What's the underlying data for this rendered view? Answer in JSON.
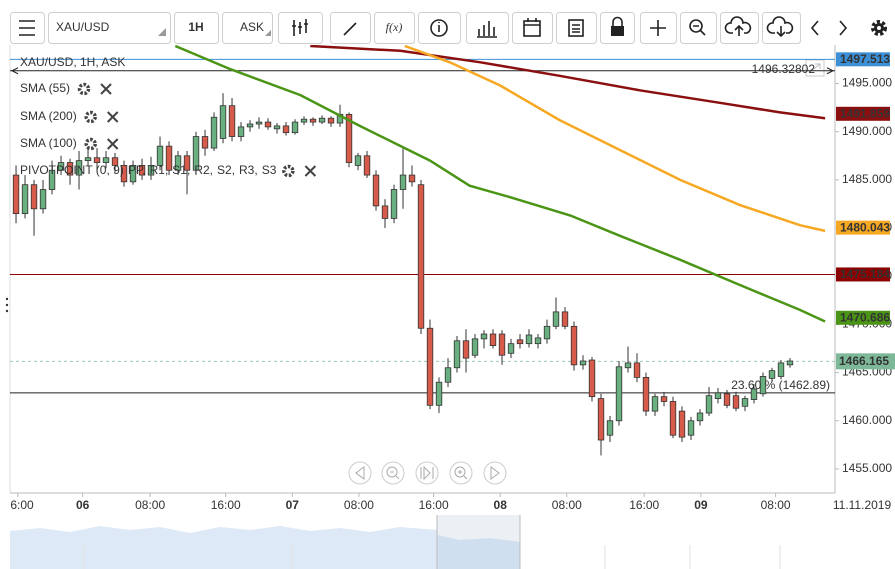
{
  "toolbar": {
    "symbol": "XAU/USD",
    "interval": "1H",
    "price_type": "ASK",
    "function_button": "f(x)"
  },
  "chart_data": {
    "type": "candlestick",
    "header": "XAU/USD, 1H, ASK",
    "up_color": "#6aaf80",
    "down_color": "#d65b4a",
    "open": [
      1485.5,
      1481.5,
      1484.5,
      1482,
      1484,
      1486,
      1486.8,
      1485.5,
      1487,
      1487.3,
      1486.8,
      1487.3,
      1486.5,
      1484.8,
      1486.5,
      1485.5,
      1486.5,
      1488.5,
      1486,
      1487.5,
      1486,
      1489.5,
      1488.3,
      1489.3,
      1492.7,
      1489.5,
      1490.5,
      1490.8,
      1491,
      1490.3,
      1490.6,
      1489.9,
      1491,
      1491.3,
      1491,
      1491.4,
      1490.9,
      1491.8,
      1486.5,
      1487.5,
      1485.5,
      1482.3,
      1481,
      1484,
      1485.5,
      1484.5,
      1469.6,
      1461.6,
      1464,
      1465.5,
      1468.3,
      1466.8,
      1468.5,
      1469,
      1469,
      1467,
      1468.4,
      1468,
      1468,
      1468.5,
      1469.8,
      1471.3,
      1469.8,
      1465.8,
      1466.3,
      1462.3,
      1458.5,
      1460,
      1465.5,
      1466,
      1464.5,
      1461,
      1462.5,
      1462,
      1461,
      1458.5,
      1460,
      1460.8,
      1462.3,
      1462.8,
      1462.6,
      1461.5,
      1462.2,
      1462.8,
      1464.4,
      1464.6,
      1465.8
    ],
    "high": [
      1486.5,
      1485.5,
      1485,
      1485,
      1487,
      1487.5,
      1487.2,
      1488,
      1488.5,
      1488.3,
      1488,
      1487.8,
      1487,
      1487,
      1487.2,
      1487.4,
      1489.5,
      1489,
      1488,
      1488,
      1490,
      1490.2,
      1492,
      1494,
      1493.5,
      1491,
      1491.2,
      1491.5,
      1491.4,
      1490.9,
      1491,
      1491.3,
      1491.6,
      1491.5,
      1491.7,
      1491.6,
      1492.8,
      1492,
      1487.8,
      1488,
      1486,
      1483,
      1484.5,
      1488.3,
      1486.5,
      1485,
      1470.5,
      1464.5,
      1466.5,
      1468.8,
      1469.5,
      1469,
      1469.4,
      1469.5,
      1469.4,
      1468.5,
      1469,
      1469.5,
      1469,
      1470.5,
      1472.8,
      1471.8,
      1470.3,
      1466.8,
      1466.6,
      1462.8,
      1460.5,
      1466.2,
      1467.7,
      1467,
      1465,
      1462.8,
      1463,
      1462.5,
      1461.5,
      1460.4,
      1461.2,
      1463.5,
      1463.4,
      1463.2,
      1463,
      1462.6,
      1463.8,
      1465,
      1465.5,
      1466.3,
      1466.5
    ],
    "low": [
      1480.5,
      1481,
      1479.2,
      1481.5,
      1483.5,
      1485.5,
      1484.5,
      1484,
      1486.5,
      1486,
      1486.2,
      1485.8,
      1484.3,
      1484.5,
      1485,
      1485,
      1486,
      1485.5,
      1485.5,
      1483.5,
      1485.5,
      1487.5,
      1488,
      1488.8,
      1489,
      1489,
      1490,
      1490.3,
      1490.2,
      1489.8,
      1489.6,
      1489.7,
      1490.7,
      1490.6,
      1490.8,
      1490.5,
      1490.5,
      1486.3,
      1486,
      1485.2,
      1481.8,
      1480,
      1480.5,
      1482,
      1484.3,
      1469,
      1461.2,
      1460.8,
      1463.5,
      1465,
      1465,
      1466.5,
      1467.5,
      1467.5,
      1465.8,
      1466.5,
      1467.5,
      1467.6,
      1467.5,
      1468,
      1469.5,
      1469.5,
      1465.2,
      1465.3,
      1462,
      1456.4,
      1457.8,
      1459.5,
      1465,
      1464,
      1460.5,
      1460.5,
      1461.5,
      1458.2,
      1457.8,
      1458,
      1459.5,
      1460.5,
      1461.8,
      1461.3,
      1461,
      1461,
      1461.8,
      1462.5,
      1464,
      1464.3,
      1465.5
    ],
    "close": [
      1481.5,
      1484.5,
      1482,
      1484,
      1486,
      1486.8,
      1485.5,
      1487,
      1487.3,
      1486.8,
      1487.3,
      1486.5,
      1484.8,
      1486.5,
      1485.5,
      1486.5,
      1488.5,
      1486,
      1487.5,
      1486,
      1489.5,
      1488.3,
      1491.5,
      1492.7,
      1489.5,
      1490.5,
      1490.8,
      1491,
      1490.5,
      1490.6,
      1489.9,
      1491,
      1491.3,
      1491,
      1491.4,
      1490.9,
      1491.8,
      1486.8,
      1487.5,
      1485.5,
      1482.3,
      1481,
      1484,
      1485.5,
      1484.8,
      1469.6,
      1461.6,
      1464,
      1465.5,
      1468.3,
      1466.5,
      1468.5,
      1469,
      1467.8,
      1466.8,
      1468,
      1468,
      1468.9,
      1468.6,
      1469.8,
      1471.3,
      1469.8,
      1465.8,
      1466.2,
      1462.5,
      1458,
      1460,
      1465.6,
      1466,
      1464.5,
      1461,
      1462.5,
      1462,
      1458.5,
      1458.3,
      1460,
      1460.8,
      1462.6,
      1462.9,
      1461.6,
      1461.3,
      1462.3,
      1463.3,
      1464.6,
      1465.2,
      1466,
      1466.2
    ],
    "series": [
      {
        "name": "SMA (55)",
        "color": "#4b9516",
        "last_value": 1470.686,
        "x": [
          17.7,
          23.8,
          31.6,
          38.2,
          46,
          50.4,
          54.9,
          61.6,
          67.1,
          73.8,
          80.4,
          87.1,
          89.9
        ],
        "values": [
          1498.9,
          1496.5,
          1493.8,
          1490.6,
          1487,
          1484.4,
          1483.2,
          1481.3,
          1479.2,
          1476.7,
          1474.1,
          1471.5,
          1470.3
        ]
      },
      {
        "name": "SMA (200)",
        "color": "#8b0f0f",
        "last_value": 1491.859,
        "x": [
          32.7,
          42.7,
          51.6,
          60.4,
          69.3,
          78.2,
          84.9,
          89.9
        ],
        "values": [
          1498.9,
          1498.4,
          1497.2,
          1495.8,
          1494.3,
          1493,
          1492,
          1491.4
        ]
      },
      {
        "name": "SMA (100)",
        "color": "#f7a823",
        "last_value": 1480.043,
        "x": [
          43.2,
          48.2,
          53.8,
          60.4,
          67.1,
          73.8,
          80.4,
          87.1,
          89.9
        ],
        "values": [
          1498.9,
          1497.2,
          1494.8,
          1491.2,
          1488.1,
          1485,
          1482.4,
          1480.3,
          1479.7
        ]
      }
    ],
    "pivot": {
      "name": "PIVOTPOINT (0, 9)",
      "items": [
        {
          "label": "PP,",
          "color": "#4a90d9"
        },
        {
          "label": "R1,",
          "color": "#3c9a2c"
        },
        {
          "label": "S1,",
          "color": "#d0021b"
        },
        {
          "label": "R2,",
          "color": "#d0021b"
        },
        {
          "label": "S2,",
          "color": "#f08a00"
        },
        {
          "label": "R3,",
          "color": "#f5a623"
        },
        {
          "label": "S3",
          "color": "#e8d400"
        }
      ]
    },
    "price_line": {
      "value": 1497.513,
      "color": "#3d8fd6"
    },
    "marker_line": {
      "value": 1496.32802
    },
    "resistance_line": {
      "value": 1475.184,
      "color": "#8b0000"
    },
    "fib_line": {
      "value": 1462.89,
      "label": "23.60 % (1462.89)"
    },
    "current_price": {
      "value": 1466.165,
      "color": "#7db898"
    },
    "xlim": [
      -0.67,
      91
    ],
    "ylim": [
      1452.5,
      1499
    ],
    "yticks": [
      {
        "value": 1455,
        "label": "1455.000"
      },
      {
        "value": 1460,
        "label": "1460.000"
      },
      {
        "value": 1465,
        "label": "1465.000"
      },
      {
        "value": 1470,
        "label": "1470.000"
      },
      {
        "value": 1475,
        "label": "1475.000"
      },
      {
        "value": 1480,
        "label": "1480.000"
      },
      {
        "value": 1485,
        "label": "1485.000"
      },
      {
        "value": 1490,
        "label": "1490.000"
      },
      {
        "value": 1495,
        "label": "1495.000"
      }
    ],
    "xticks": [
      {
        "value": 0.2,
        "label": "6:00"
      },
      {
        "value": 7.4,
        "label": "06"
      },
      {
        "value": 14.9,
        "label": "08:00"
      },
      {
        "value": 23.3,
        "label": "16:00"
      },
      {
        "value": 30.7,
        "label": "07"
      },
      {
        "value": 38.1,
        "label": "08:00"
      },
      {
        "value": 46.4,
        "label": "16:00"
      },
      {
        "value": 53.8,
        "label": "08"
      },
      {
        "value": 61.2,
        "label": "08:00"
      },
      {
        "value": 69.8,
        "label": "16:00"
      },
      {
        "value": 76.1,
        "label": "09"
      },
      {
        "value": 84.4,
        "label": "08:00"
      }
    ],
    "date_label": "11.11.2019"
  }
}
